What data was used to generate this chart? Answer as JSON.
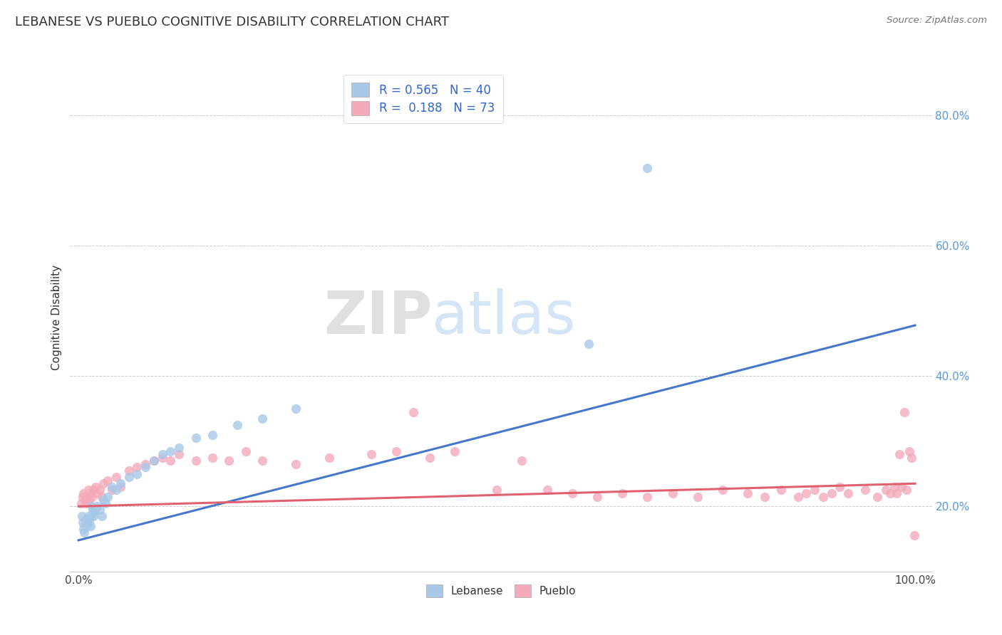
{
  "title": "LEBANESE VS PUEBLO COGNITIVE DISABILITY CORRELATION CHART",
  "source": "Source: ZipAtlas.com",
  "ylabel": "Cognitive Disability",
  "xlim": [
    -0.01,
    1.02
  ],
  "ylim": [
    0.1,
    0.88
  ],
  "xticks": [
    0.0,
    0.2,
    0.4,
    0.6,
    0.8,
    1.0
  ],
  "xtick_labels": [
    "0.0%",
    "",
    "",
    "",
    "",
    "100.0%"
  ],
  "yticks_right": [
    0.2,
    0.4,
    0.6,
    0.8
  ],
  "ytick_right_labels": [
    "20.0%",
    "40.0%",
    "60.0%",
    "80.0%"
  ],
  "blue_R": 0.565,
  "blue_N": 40,
  "pink_R": 0.188,
  "pink_N": 73,
  "blue_color": "#A8C8E8",
  "pink_color": "#F4AABB",
  "blue_line_color": "#4477CC",
  "pink_line_color": "#E06070",
  "legend_label_blue": "Lebanese",
  "legend_label_pink": "Pueblo",
  "watermark": "ZIPatlas",
  "blue_line_x0": 0.0,
  "blue_line_y0": 0.148,
  "blue_line_x1": 1.0,
  "blue_line_y1": 0.478,
  "pink_line_x0": 0.0,
  "pink_line_y0": 0.2,
  "pink_line_x1": 1.0,
  "pink_line_y1": 0.235,
  "blue_points_x": [
    0.004,
    0.005,
    0.006,
    0.007,
    0.008,
    0.009,
    0.01,
    0.011,
    0.012,
    0.013,
    0.014,
    0.015,
    0.016,
    0.017,
    0.018,
    0.019,
    0.02,
    0.022,
    0.025,
    0.028,
    0.03,
    0.032,
    0.035,
    0.04,
    0.045,
    0.05,
    0.06,
    0.07,
    0.08,
    0.09,
    0.1,
    0.11,
    0.12,
    0.14,
    0.16,
    0.19,
    0.22,
    0.26,
    0.61,
    0.68
  ],
  "blue_points_y": [
    0.185,
    0.175,
    0.165,
    0.16,
    0.175,
    0.18,
    0.17,
    0.18,
    0.185,
    0.175,
    0.17,
    0.185,
    0.2,
    0.195,
    0.185,
    0.19,
    0.195,
    0.2,
    0.195,
    0.185,
    0.21,
    0.205,
    0.215,
    0.23,
    0.225,
    0.235,
    0.245,
    0.25,
    0.26,
    0.27,
    0.28,
    0.285,
    0.29,
    0.305,
    0.31,
    0.325,
    0.335,
    0.35,
    0.45,
    0.72
  ],
  "pink_points_x": [
    0.003,
    0.005,
    0.006,
    0.008,
    0.009,
    0.01,
    0.011,
    0.012,
    0.013,
    0.015,
    0.016,
    0.018,
    0.02,
    0.022,
    0.025,
    0.028,
    0.03,
    0.035,
    0.04,
    0.045,
    0.05,
    0.06,
    0.07,
    0.08,
    0.09,
    0.1,
    0.11,
    0.12,
    0.14,
    0.16,
    0.18,
    0.2,
    0.22,
    0.26,
    0.3,
    0.35,
    0.38,
    0.4,
    0.42,
    0.45,
    0.5,
    0.53,
    0.56,
    0.59,
    0.62,
    0.65,
    0.68,
    0.71,
    0.74,
    0.77,
    0.8,
    0.82,
    0.84,
    0.86,
    0.87,
    0.88,
    0.89,
    0.9,
    0.91,
    0.92,
    0.94,
    0.955,
    0.965,
    0.97,
    0.975,
    0.978,
    0.981,
    0.984,
    0.987,
    0.99,
    0.993,
    0.996,
    0.999
  ],
  "pink_points_y": [
    0.205,
    0.215,
    0.22,
    0.21,
    0.205,
    0.215,
    0.215,
    0.225,
    0.21,
    0.22,
    0.215,
    0.225,
    0.23,
    0.22,
    0.225,
    0.215,
    0.235,
    0.24,
    0.225,
    0.245,
    0.23,
    0.255,
    0.26,
    0.265,
    0.27,
    0.275,
    0.27,
    0.28,
    0.27,
    0.275,
    0.27,
    0.285,
    0.27,
    0.265,
    0.275,
    0.28,
    0.285,
    0.345,
    0.275,
    0.285,
    0.225,
    0.27,
    0.225,
    0.22,
    0.215,
    0.22,
    0.215,
    0.22,
    0.215,
    0.225,
    0.22,
    0.215,
    0.225,
    0.215,
    0.22,
    0.225,
    0.215,
    0.22,
    0.23,
    0.22,
    0.225,
    0.215,
    0.225,
    0.22,
    0.23,
    0.22,
    0.28,
    0.23,
    0.345,
    0.225,
    0.285,
    0.275,
    0.155
  ]
}
